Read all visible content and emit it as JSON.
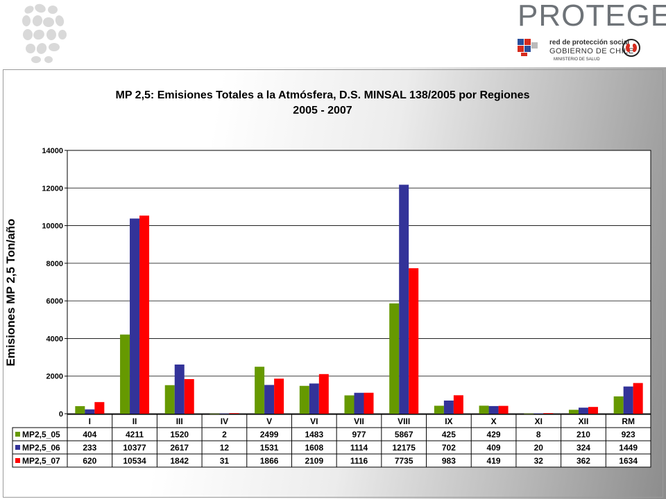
{
  "brand": {
    "name": "PROTEGE",
    "line1": "red de protección social",
    "line2": "GOBIERNO DE CHILE",
    "line3": "MINISTERIO DE SALUD"
  },
  "colors": {
    "MP2,5_05": "#669900",
    "MP2,5_06": "#333399",
    "MP2,5_07": "#ff0000"
  },
  "chart_data": {
    "type": "bar",
    "title": "MP 2,5: Emisiones Totales a la Atmósfera,  D.S. MINSAL 138/2005 por Regiones",
    "subtitle": "2005 - 2007",
    "ylabel": "Emisiones MP 2,5 Ton/año",
    "xlabel": "",
    "ylim": [
      0,
      14000
    ],
    "yticks": [
      0,
      2000,
      4000,
      6000,
      8000,
      10000,
      12000,
      14000
    ],
    "grid": true,
    "legend": "data-table",
    "categories": [
      "I",
      "II",
      "III",
      "IV",
      "V",
      "VI",
      "VII",
      "VIII",
      "IX",
      "X",
      "XI",
      "XII",
      "RM"
    ],
    "series": [
      {
        "name": "MP2,5_05",
        "values": [
          404,
          4211,
          1520,
          2,
          2499,
          1483,
          977,
          5867,
          425,
          429,
          8,
          210,
          923
        ]
      },
      {
        "name": "MP2,5_06",
        "values": [
          233,
          10377,
          2617,
          12,
          1531,
          1608,
          1114,
          12175,
          702,
          409,
          20,
          324,
          1449
        ]
      },
      {
        "name": "MP2,5_07",
        "values": [
          620,
          10534,
          1842,
          31,
          1866,
          2109,
          1116,
          7735,
          983,
          419,
          32,
          362,
          1634
        ]
      }
    ]
  }
}
